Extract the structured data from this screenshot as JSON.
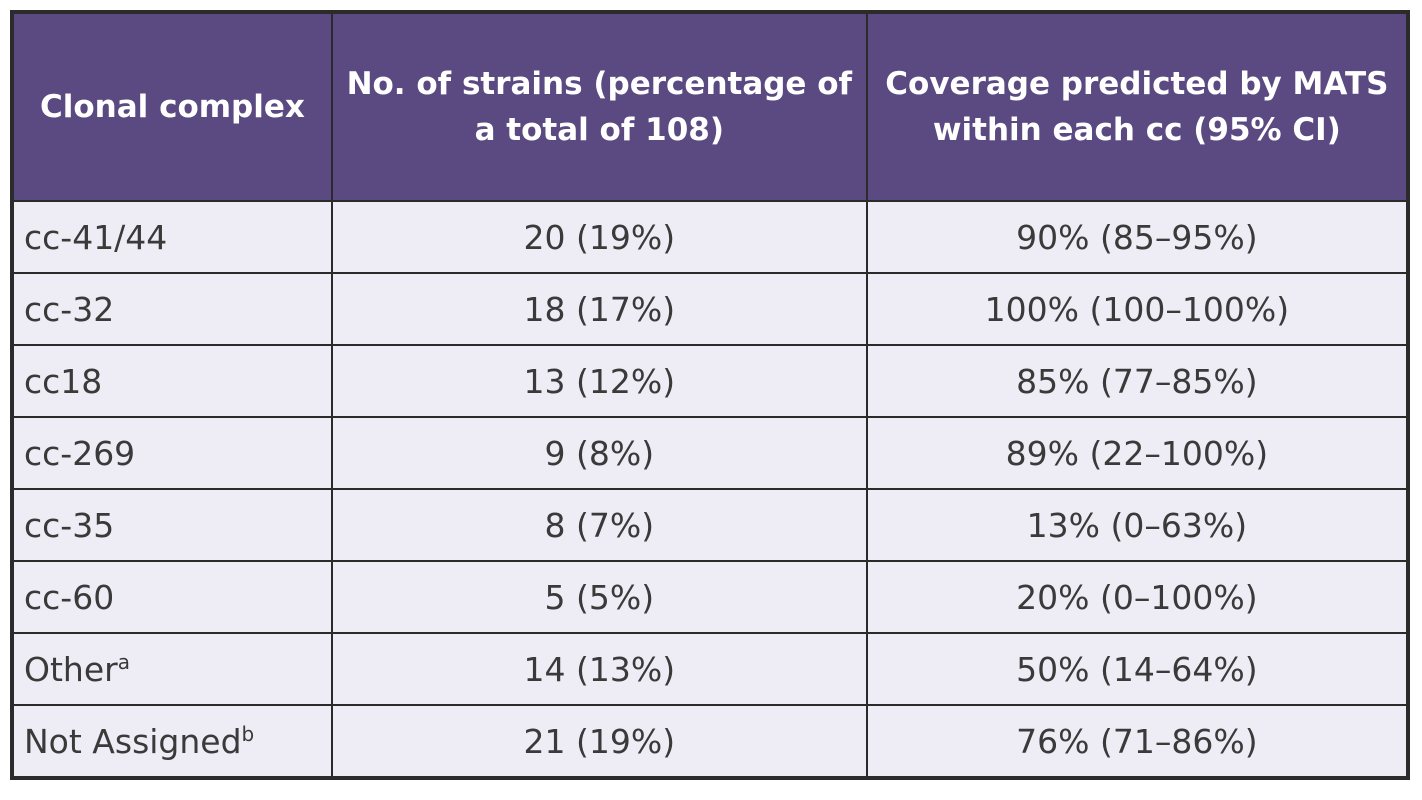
{
  "table": {
    "headers": [
      "Clonal complex",
      "No. of strains (percentage of a total of 108)",
      "Coverage predicted by MATS within each cc (95% CI)"
    ],
    "rows": [
      {
        "cc": "cc-41/44",
        "sup": "",
        "strains": "20 (19%)",
        "coverage": "90% (85–95%)"
      },
      {
        "cc": "cc-32",
        "sup": "",
        "strains": "18 (17%)",
        "coverage": "100% (100–100%)"
      },
      {
        "cc": "cc18",
        "sup": "",
        "strains": "13 (12%)",
        "coverage": "85% (77–85%)"
      },
      {
        "cc": "cc-269",
        "sup": "",
        "strains": "9 (8%)",
        "coverage": "89% (22–100%)"
      },
      {
        "cc": "cc-35",
        "sup": "",
        "strains": "8 (7%)",
        "coverage": "13% (0–63%)"
      },
      {
        "cc": "cc-60",
        "sup": "",
        "strains": "5 (5%)",
        "coverage": "20% (0–100%)"
      },
      {
        "cc": "Other",
        "sup": "a",
        "strains": "14 (13%)",
        "coverage": "50% (14–64%)"
      },
      {
        "cc": "Not Assigned",
        "sup": "b",
        "strains": "21 (19%)",
        "coverage": "76% (71–86%)"
      }
    ]
  },
  "colors": {
    "header_bg": "#5b4a82",
    "header_text": "#ffffff",
    "cell_bg": "#eeecf4",
    "border": "#2b2b2b"
  }
}
